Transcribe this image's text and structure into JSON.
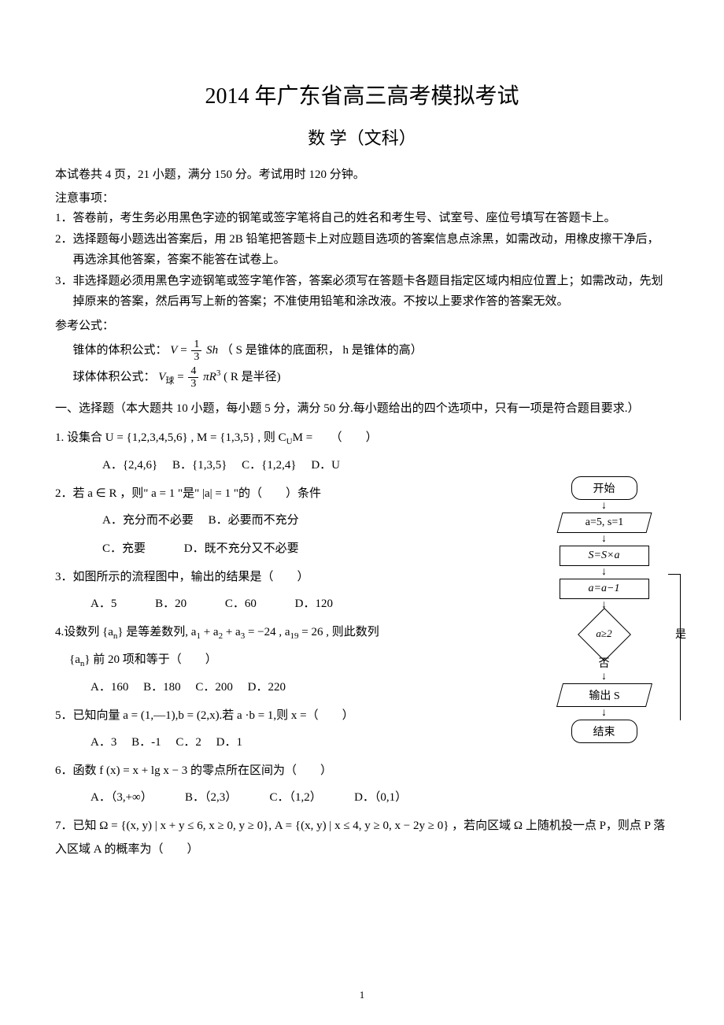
{
  "header": {
    "title_main": "2014 年广东省高三高考模拟考试",
    "title_sub": "数 学（文科）"
  },
  "intro": "本试卷共 4 页，21 小题，满分 150 分。考试用时 120 分钟。",
  "notice": {
    "title": "注意事项：",
    "items": [
      "1．答卷前，考生务必用黑色字迹的钢笔或签字笔将自己的姓名和考生号、试室号、座位号填写在答题卡上。",
      "2．选择题每小题选出答案后，用 2B 铅笔把答题卡上对应题目选项的答案信息点涂黑，如需改动，用橡皮擦干净后，再选涂其他答案，答案不能答在试卷上。",
      "3．非选择题必须用黑色字迹钢笔或签字笔作答，答案必须写在答题卡各题目指定区域内相应位置上；如需改动，先划掉原来的答案，然后再写上新的答案；不准使用铅笔和涂改液。不按以上要求作答的答案无效。"
    ]
  },
  "formulas": {
    "title": "参考公式：",
    "cone_prefix": "锥体的体积公式：",
    "cone_var": "V",
    "cone_frac_num": "1",
    "cone_frac_den": "3",
    "cone_rest": "Sh",
    "cone_note": "（ S 是锥体的底面积， h 是锥体的高）",
    "sphere_prefix": "球体体积公式：",
    "sphere_var": "V",
    "sphere_sub": "球",
    "sphere_frac_num": "4",
    "sphere_frac_den": "3",
    "sphere_pi": "π",
    "sphere_r": "R",
    "sphere_exp": "3",
    "sphere_note": "( R 是半径)"
  },
  "section1": {
    "title": "一、选择题（本大题共 10 小题，每小题 5 分，满分 50 分.每小题给出的四个选项中，只有一项是符合题目要求.）"
  },
  "q1": {
    "stem": "1. 设集合 U = {1,2,3,4,5,6} , M = {1,3,5} , 则 C",
    "sub": "U",
    "stem2": "M =　　（　　）",
    "optA": "A．{2,4,6}",
    "optB": "B．{1,3,5}",
    "optC": "C．{1,2,4}",
    "optD": "D．U"
  },
  "q2": {
    "stem": "2．若 a ∈ R ，则\" a = 1 \"是\" |a| = 1 \"的（　　）条件",
    "optA": "A．充分而不必要",
    "optB": "B．必要而不充分",
    "optC": "C．充要",
    "optD": "D．既不充分又不必要"
  },
  "q3": {
    "stem": "3．如图所示的流程图中，输出的结果是（　　）",
    "optA": "A．5",
    "optB": "B．20",
    "optC": "C．60",
    "optD": "D．120"
  },
  "q4": {
    "stem_a": "4.设数列 {a",
    "sub_n": "n",
    "stem_b": "} 是等差数列,  a",
    "sub_1": "1",
    "plus1": " + a",
    "sub_2": "2",
    "plus2": " + a",
    "sub_3": "3",
    "eq1": " = −24 ,  a",
    "sub_19": "19",
    "eq2": " = 26 , 则此数列",
    "line2_a": "{a",
    "line2_b": "} 前 20 项和等于（　　）",
    "optA": "A．160",
    "optB": "B．180",
    "optC": "C．200",
    "optD": "D．220"
  },
  "q5": {
    "stem": "5．已知向量 a = (1,—1),b = (2,x).若 a ·b = 1,则 x =（　　）",
    "optA": "A．3",
    "optB": "B．-1",
    "optC": "C．2",
    "optD": "D．1"
  },
  "q6": {
    "stem": "6．函数 f (x) = x + lg x − 3 的零点所在区间为（　　）",
    "optA": "A．（3,+∞）",
    "optB": "B．（2,3）",
    "optC": "C．（1,2）",
    "optD": "D．（0,1）"
  },
  "q7": {
    "stem": "7．已知 Ω = {(x, y) | x + y ≤ 6, x ≥ 0, y ≥ 0}, A = {(x, y) | x ≤ 4, y ≥ 0, x − 2y ≥ 0} ，若向区域 Ω 上随机投一点 P，则点 P 落入区域 A 的概率为（　　）"
  },
  "flowchart": {
    "start": "开始",
    "init": "a=5,  s=1",
    "step1": "S=S×a",
    "step2": "a=a−1",
    "cond": "a≥2",
    "yes": "是",
    "no": "否",
    "output": "输出 S",
    "end": "结束"
  },
  "page_number": "1"
}
